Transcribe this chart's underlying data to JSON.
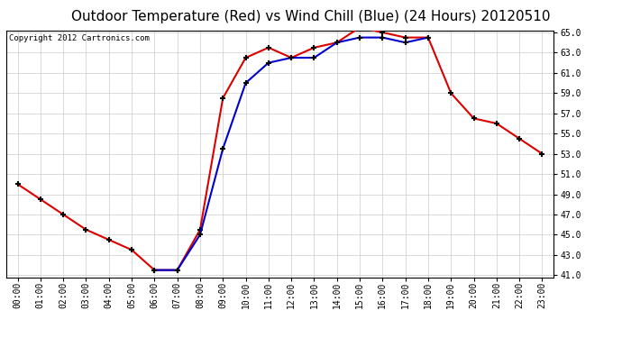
{
  "title": "Outdoor Temperature (Red) vs Wind Chill (Blue) (24 Hours) 20120510",
  "copyright_text": "Copyright 2012 Cartronics.com",
  "hours": [
    "00:00",
    "01:00",
    "02:00",
    "03:00",
    "04:00",
    "05:00",
    "06:00",
    "07:00",
    "08:00",
    "09:00",
    "10:00",
    "11:00",
    "12:00",
    "13:00",
    "14:00",
    "15:00",
    "16:00",
    "17:00",
    "18:00",
    "19:00",
    "20:00",
    "21:00",
    "22:00",
    "23:00"
  ],
  "red_temp": [
    50.0,
    48.5,
    47.0,
    45.5,
    44.5,
    43.5,
    41.5,
    41.5,
    45.5,
    58.5,
    62.5,
    63.5,
    62.5,
    63.5,
    64.0,
    65.5,
    65.0,
    64.5,
    64.5,
    59.0,
    56.5,
    56.0,
    54.5,
    53.0
  ],
  "blue_temp": [
    null,
    null,
    null,
    null,
    null,
    null,
    41.5,
    41.5,
    45.0,
    53.5,
    60.0,
    62.0,
    62.5,
    62.5,
    64.0,
    64.5,
    64.5,
    64.0,
    64.5,
    null,
    null,
    null,
    null,
    null
  ],
  "ylim_min": 41.0,
  "ylim_max": 65.0,
  "yticks": [
    41.0,
    43.0,
    45.0,
    47.0,
    49.0,
    51.0,
    53.0,
    55.0,
    57.0,
    59.0,
    61.0,
    63.0,
    65.0
  ],
  "red_color": "#dd0000",
  "blue_color": "#0000cc",
  "bg_color": "#ffffff",
  "grid_color": "#cccccc",
  "title_fontsize": 11,
  "copyright_fontsize": 6.5,
  "tick_fontsize": 7,
  "marker_color": "#000000",
  "marker_size": 5,
  "linewidth": 1.5
}
